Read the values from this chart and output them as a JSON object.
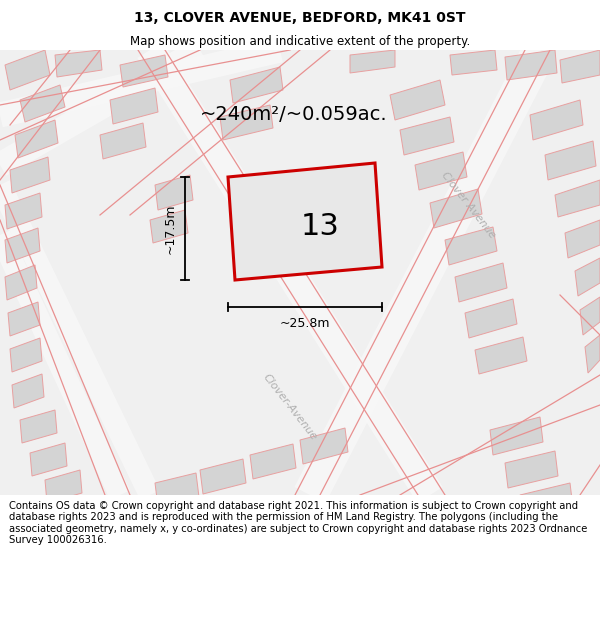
{
  "title": "13, CLOVER AVENUE, BEDFORD, MK41 0ST",
  "subtitle": "Map shows position and indicative extent of the property.",
  "footer": "Contains OS data © Crown copyright and database right 2021. This information is subject to Crown copyright and database rights 2023 and is reproduced with the permission of HM Land Registry. The polygons (including the associated geometry, namely x, y co-ordinates) are subject to Crown copyright and database rights 2023 Ordnance Survey 100026316.",
  "area_label": "~240m²/~0.059ac.",
  "number_label": "13",
  "dim_height": "~17.5m",
  "dim_width": "~25.8m",
  "street_label_1": "Clover Avenue",
  "street_label_2": "Clover-Avenue",
  "map_bg": "#f0f0f0",
  "plot_color": "#cc0000",
  "building_fill": "#d4d4d4",
  "building_edge": "#e8a0a0",
  "road_line_color": "#e89090",
  "title_fontsize": 10,
  "subtitle_fontsize": 8.5,
  "footer_fontsize": 7.2,
  "area_fontsize": 14,
  "number_fontsize": 22,
  "dim_fontsize": 9,
  "street_fontsize": 8
}
